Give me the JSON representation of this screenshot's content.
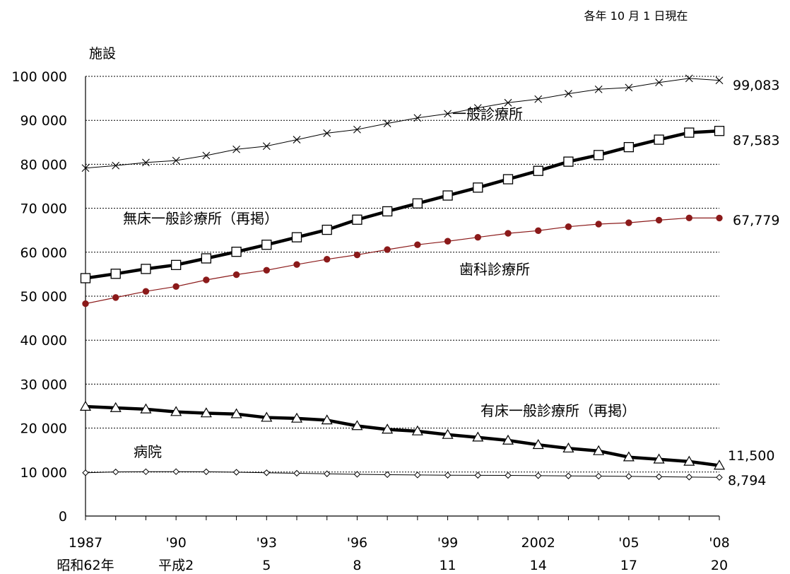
{
  "chart_data": {
    "type": "line",
    "note": "各年 10 月 1 日現在",
    "y_unit_label": "施設",
    "ylim": [
      0,
      100000
    ],
    "y_ticks": [
      0,
      10000,
      20000,
      30000,
      40000,
      50000,
      60000,
      70000,
      80000,
      90000,
      100000
    ],
    "y_tick_labels": [
      "0",
      "10 000",
      "20 000",
      "30 000",
      "40 000",
      "50 000",
      "60 000",
      "70 000",
      "80 000",
      "90 000",
      "100 000"
    ],
    "grid": true,
    "x": [
      1987,
      1988,
      1989,
      1990,
      1991,
      1992,
      1993,
      1994,
      1995,
      1996,
      1997,
      1998,
      1999,
      2000,
      2001,
      2002,
      2003,
      2004,
      2005,
      2006,
      2007,
      2008
    ],
    "x_tick_positions": [
      1987,
      1990,
      1993,
      1996,
      1999,
      2002,
      2005,
      2008
    ],
    "x_tick_labels_line1": [
      "1987",
      "'90",
      "'93",
      "'96",
      "'99",
      "2002",
      "'05",
      "'08"
    ],
    "x_tick_labels_line2": [
      "昭和62年",
      "平成2",
      "5",
      "8",
      "11",
      "14",
      "17",
      "20"
    ],
    "series": [
      {
        "name": "一般診療所",
        "marker": "x",
        "color": "#000000",
        "values": [
          79134,
          79700,
          80400,
          80852,
          82000,
          83400,
          84128,
          85600,
          87069,
          87909,
          89300,
          90556,
          91500,
          92824,
          94000,
          94819,
          96050,
          97051,
          97442,
          98609,
          99532,
          99083
        ],
        "end_label": "99,083"
      },
      {
        "name": "無床一般診療所（再掲）",
        "marker": "square",
        "color": "#000000",
        "values": [
          54100,
          55100,
          56200,
          57100,
          58600,
          60100,
          61700,
          63400,
          65100,
          67400,
          69300,
          71100,
          72900,
          74700,
          76600,
          78500,
          80600,
          82100,
          83900,
          85600,
          87200,
          87583
        ],
        "end_label": "87,583"
      },
      {
        "name": "歯科診療所",
        "marker": "dot",
        "color": "#8b1a1a",
        "values": [
          48300,
          49700,
          51100,
          52200,
          53700,
          54900,
          55900,
          57200,
          58400,
          59400,
          60600,
          61700,
          62500,
          63400,
          64300,
          64900,
          65800,
          66400,
          66700,
          67300,
          67800,
          67779
        ],
        "end_label": "67,779"
      },
      {
        "name": "有床一般診療所（再掲）",
        "marker": "triangle",
        "color": "#000000",
        "values": [
          24900,
          24600,
          24300,
          23700,
          23400,
          23200,
          22400,
          22200,
          21800,
          20500,
          19700,
          19300,
          18500,
          17900,
          17200,
          16200,
          15400,
          14800,
          13400,
          12900,
          12400,
          11500
        ],
        "end_label": "11,500"
      },
      {
        "name": "病院",
        "marker": "diamond",
        "color": "#000000",
        "values": [
          9841,
          10034,
          10081,
          10096,
          10066,
          9963,
          9844,
          9731,
          9606,
          9490,
          9413,
          9333,
          9286,
          9266,
          9239,
          9187,
          9122,
          9077,
          9026,
          8943,
          8862,
          8794
        ],
        "end_label": "8,794"
      }
    ]
  }
}
